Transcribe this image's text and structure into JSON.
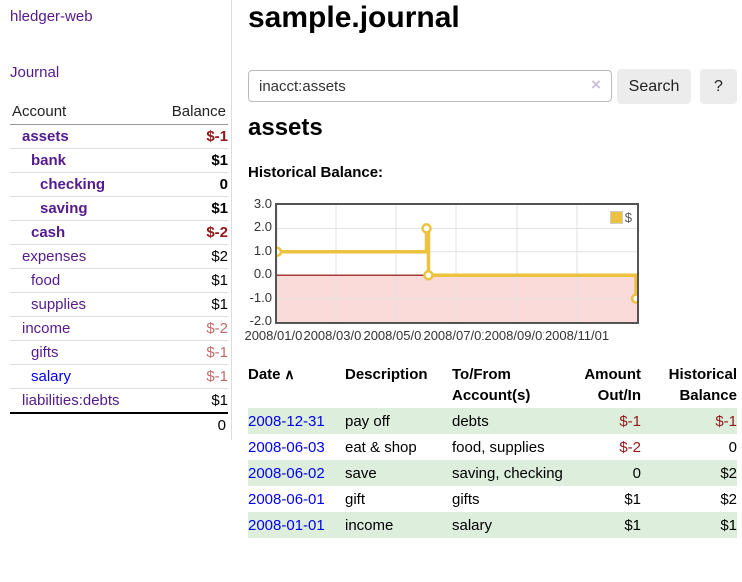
{
  "colors": {
    "purple": "#551a8b",
    "blue": "#0000ee",
    "neg": "#941717",
    "neg_muted": "#bf6a6a",
    "row_green": "#ddeedd",
    "accent_gold": "#edc240",
    "negative_region": "#fbdada",
    "zero_line": "#8b0000",
    "grid": "#e2e2e2"
  },
  "app": {
    "title": "hledger-web"
  },
  "sidebar": {
    "journal_label": "Journal",
    "accounts": {
      "headers": {
        "account": "Account",
        "balance": "Balance"
      },
      "rows": [
        {
          "name": "assets",
          "balance": "$-1",
          "level": 1,
          "bold": true,
          "balance_tone": "neg"
        },
        {
          "name": "bank",
          "balance": "$1",
          "level": 2,
          "bold": true,
          "balance_tone": "pos"
        },
        {
          "name": "checking",
          "balance": "0",
          "level": 3,
          "bold": true,
          "balance_tone": "pos"
        },
        {
          "name": "saving",
          "balance": "$1",
          "level": 3,
          "bold": true,
          "balance_tone": "pos"
        },
        {
          "name": "cash",
          "balance": "$-2",
          "level": 2,
          "bold": true,
          "balance_tone": "neg"
        },
        {
          "name": "expenses",
          "balance": "$2",
          "level": 1,
          "bold": false,
          "balance_tone": "pos"
        },
        {
          "name": "food",
          "balance": "$1",
          "level": 2,
          "bold": false,
          "balance_tone": "pos"
        },
        {
          "name": "supplies",
          "balance": "$1",
          "level": 2,
          "bold": false,
          "balance_tone": "pos"
        },
        {
          "name": "income",
          "balance": "$-2",
          "level": 1,
          "bold": false,
          "balance_tone": "neg_muted"
        },
        {
          "name": "gifts",
          "balance": "$-1",
          "level": 2,
          "bold": false,
          "balance_tone": "neg_muted"
        },
        {
          "name": "salary",
          "balance": "$-1",
          "level": 2,
          "bold": false,
          "balance_tone": "neg_muted",
          "link_color": "blue"
        },
        {
          "name": "liabilities:debts",
          "balance": "$1",
          "level": 1,
          "bold": false,
          "balance_tone": "pos"
        }
      ],
      "total": "0"
    }
  },
  "main": {
    "title": "sample.journal",
    "search": {
      "value": "inacct:assets",
      "clear_icon": "×",
      "search_label": "Search",
      "help_label": "?"
    },
    "account_heading": "assets",
    "section_label": "Historical Balance:"
  },
  "chart_data": {
    "type": "line",
    "title": "Historical Balance:",
    "step": true,
    "x_range": [
      "2008-01-01",
      "2009-01-01"
    ],
    "ylim": [
      -2,
      3
    ],
    "y_ticks": [
      "3.0",
      "2.0",
      "1.0",
      "0.0",
      "-1.0",
      "-2.0"
    ],
    "x_ticks": [
      "2008/01/01",
      "2008/03/01",
      "2008/05/01",
      "2008/07/01",
      "2008/09/01",
      "2008/11/01"
    ],
    "grid": true,
    "legend_position": "top-right",
    "series": [
      {
        "name": "$",
        "color": "#edc240",
        "points": [
          [
            "2008-01-01",
            1.0
          ],
          [
            "2008-06-01",
            2.0
          ],
          [
            "2008-06-03",
            0.0
          ],
          [
            "2008-12-31",
            -1.0
          ]
        ]
      }
    ],
    "annotations": {
      "negative_region": {
        "from": 0,
        "to": -2
      },
      "zero_line": 0
    }
  },
  "register": {
    "headers": [
      {
        "label": "Date",
        "sort_icon": "∧"
      },
      {
        "label": "Description"
      },
      {
        "label": "To/From Account(s)"
      },
      {
        "label": "Amount Out/In"
      },
      {
        "label": "Historical Balance"
      }
    ],
    "rows": [
      {
        "date": "2008-12-31",
        "description": "pay off",
        "accounts": "debts",
        "amount": "$-1",
        "amount_tone": "neg",
        "balance": "$-1",
        "balance_tone": "neg"
      },
      {
        "date": "2008-06-03",
        "description": "eat & shop",
        "accounts": "food, supplies",
        "amount": "$-2",
        "amount_tone": "neg",
        "balance": "0",
        "balance_tone": "pos"
      },
      {
        "date": "2008-06-02",
        "description": "save",
        "accounts": "saving, checking",
        "amount": "0",
        "amount_tone": "pos",
        "balance": "$2",
        "balance_tone": "pos"
      },
      {
        "date": "2008-06-01",
        "description": "gift",
        "accounts": "gifts",
        "amount": "$1",
        "amount_tone": "pos",
        "balance": "$2",
        "balance_tone": "pos"
      },
      {
        "date": "2008-01-01",
        "description": "income",
        "accounts": "salary",
        "amount": "$1",
        "amount_tone": "pos",
        "balance": "$1",
        "balance_tone": "pos"
      }
    ]
  }
}
